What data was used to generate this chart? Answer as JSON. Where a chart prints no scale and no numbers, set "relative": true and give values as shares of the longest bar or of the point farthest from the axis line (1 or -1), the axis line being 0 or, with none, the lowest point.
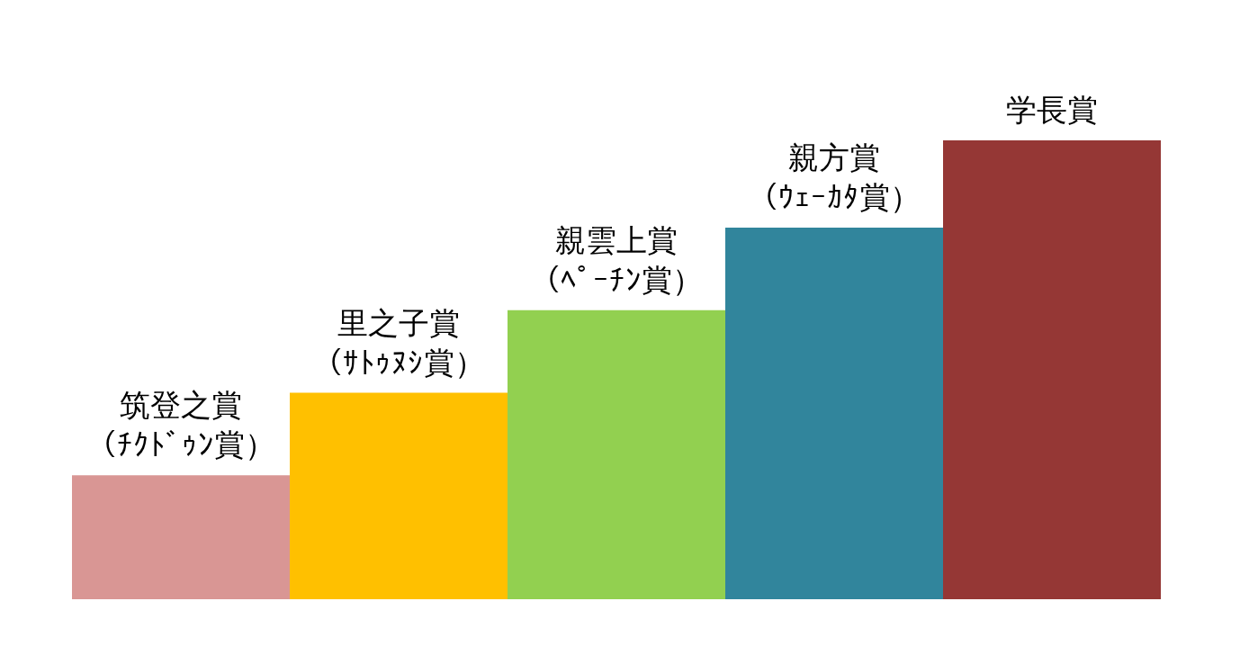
{
  "chart_data": {
    "type": "bar",
    "relative": true,
    "categories": [
      "筑登之賞（ﾁｸﾄﾞｩﾝ賞）",
      "里之子賞（ｻﾄｩﾇｼ賞）",
      "親雲上賞（ﾍﾟｰﾁﾝ賞）",
      "親方賞（ｳｪｰｶﾀ賞）",
      "学長賞"
    ],
    "values": [
      0.27,
      0.45,
      0.63,
      0.81,
      1
    ],
    "colors": [
      "#d99694",
      "#ffc000",
      "#92d050",
      "#31859c",
      "#953735"
    ],
    "grid": false
  }
}
